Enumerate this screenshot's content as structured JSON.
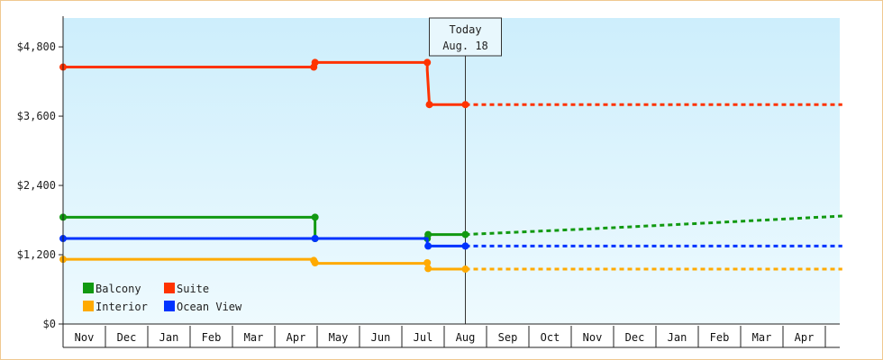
{
  "chart_data": {
    "type": "line",
    "title": "",
    "xlabel": "",
    "ylabel": "",
    "ylim": [
      0,
      5300
    ],
    "y_ticks": [
      0,
      1200,
      2400,
      3600,
      4800
    ],
    "y_tick_labels": [
      "$0",
      "$1,200",
      "$2,400",
      "$3,600",
      "$4,800"
    ],
    "x_months": [
      "Nov",
      "Dec",
      "Jan",
      "Feb",
      "Mar",
      "Apr",
      "May",
      "Jun",
      "Jul",
      "Aug",
      "Sep",
      "Oct",
      "Nov",
      "Dec",
      "Jan",
      "Feb",
      "Mar",
      "Apr"
    ],
    "grid": false,
    "legend_position": "bottom-left",
    "today_marker": {
      "line1": "Today",
      "line2": "Aug. 18",
      "x": 9.5
    },
    "series": [
      {
        "name": "Suite",
        "color": "#ff3300",
        "history": [
          [
            0,
            4450
          ],
          [
            5.95,
            4450
          ],
          [
            5.95,
            4500
          ],
          [
            5.95,
            4530
          ],
          [
            8.6,
            4530
          ],
          [
            8.6,
            4400
          ],
          [
            8.65,
            3800
          ],
          [
            9.5,
            3800
          ]
        ],
        "markers": [
          [
            0,
            4450
          ],
          [
            5.92,
            4450
          ],
          [
            5.95,
            4530
          ],
          [
            8.6,
            4530
          ],
          [
            8.65,
            3800
          ],
          [
            9.5,
            3800
          ]
        ],
        "forecast": [
          [
            9.5,
            3800
          ],
          [
            18.4,
            3800
          ]
        ]
      },
      {
        "name": "Balcony",
        "color": "#119911",
        "history": [
          [
            0,
            1850
          ],
          [
            5.95,
            1850
          ],
          [
            5.95,
            1480
          ],
          [
            8.6,
            1480
          ],
          [
            8.6,
            1550
          ],
          [
            9.5,
            1550
          ]
        ],
        "markers": [
          [
            0,
            1850
          ],
          [
            5.95,
            1850
          ],
          [
            5.95,
            1480
          ],
          [
            8.6,
            1480
          ],
          [
            8.62,
            1550
          ],
          [
            9.5,
            1550
          ]
        ],
        "forecast": [
          [
            9.5,
            1550
          ],
          [
            12.5,
            1650
          ],
          [
            15.5,
            1760
          ],
          [
            18.4,
            1870
          ]
        ]
      },
      {
        "name": "Interior",
        "color": "#ffaa00",
        "history": [
          [
            0,
            1120
          ],
          [
            5.95,
            1120
          ],
          [
            5.95,
            1050
          ],
          [
            8.6,
            1050
          ],
          [
            8.6,
            950
          ],
          [
            9.5,
            950
          ]
        ],
        "markers": [
          [
            0,
            1120
          ],
          [
            5.92,
            1100
          ],
          [
            5.95,
            1060
          ],
          [
            8.6,
            1060
          ],
          [
            8.62,
            960
          ],
          [
            9.5,
            950
          ]
        ],
        "forecast": [
          [
            9.5,
            950
          ],
          [
            18.4,
            950
          ]
        ]
      },
      {
        "name": "Ocean View",
        "color": "#0033ff",
        "history": [
          [
            0,
            1480
          ],
          [
            5.95,
            1480
          ],
          [
            8.6,
            1480
          ],
          [
            8.6,
            1350
          ],
          [
            9.5,
            1350
          ]
        ],
        "markers": [
          [
            0,
            1480
          ],
          [
            5.95,
            1480
          ],
          [
            8.62,
            1350
          ],
          [
            9.5,
            1350
          ]
        ],
        "forecast": [
          [
            9.5,
            1350
          ],
          [
            18.4,
            1350
          ]
        ]
      }
    ],
    "legend": [
      {
        "name": "Balcony",
        "color": "#119911"
      },
      {
        "name": "Suite",
        "color": "#ff3300"
      },
      {
        "name": "Interior",
        "color": "#ffaa00"
      },
      {
        "name": "Ocean View",
        "color": "#0033ff"
      }
    ]
  }
}
